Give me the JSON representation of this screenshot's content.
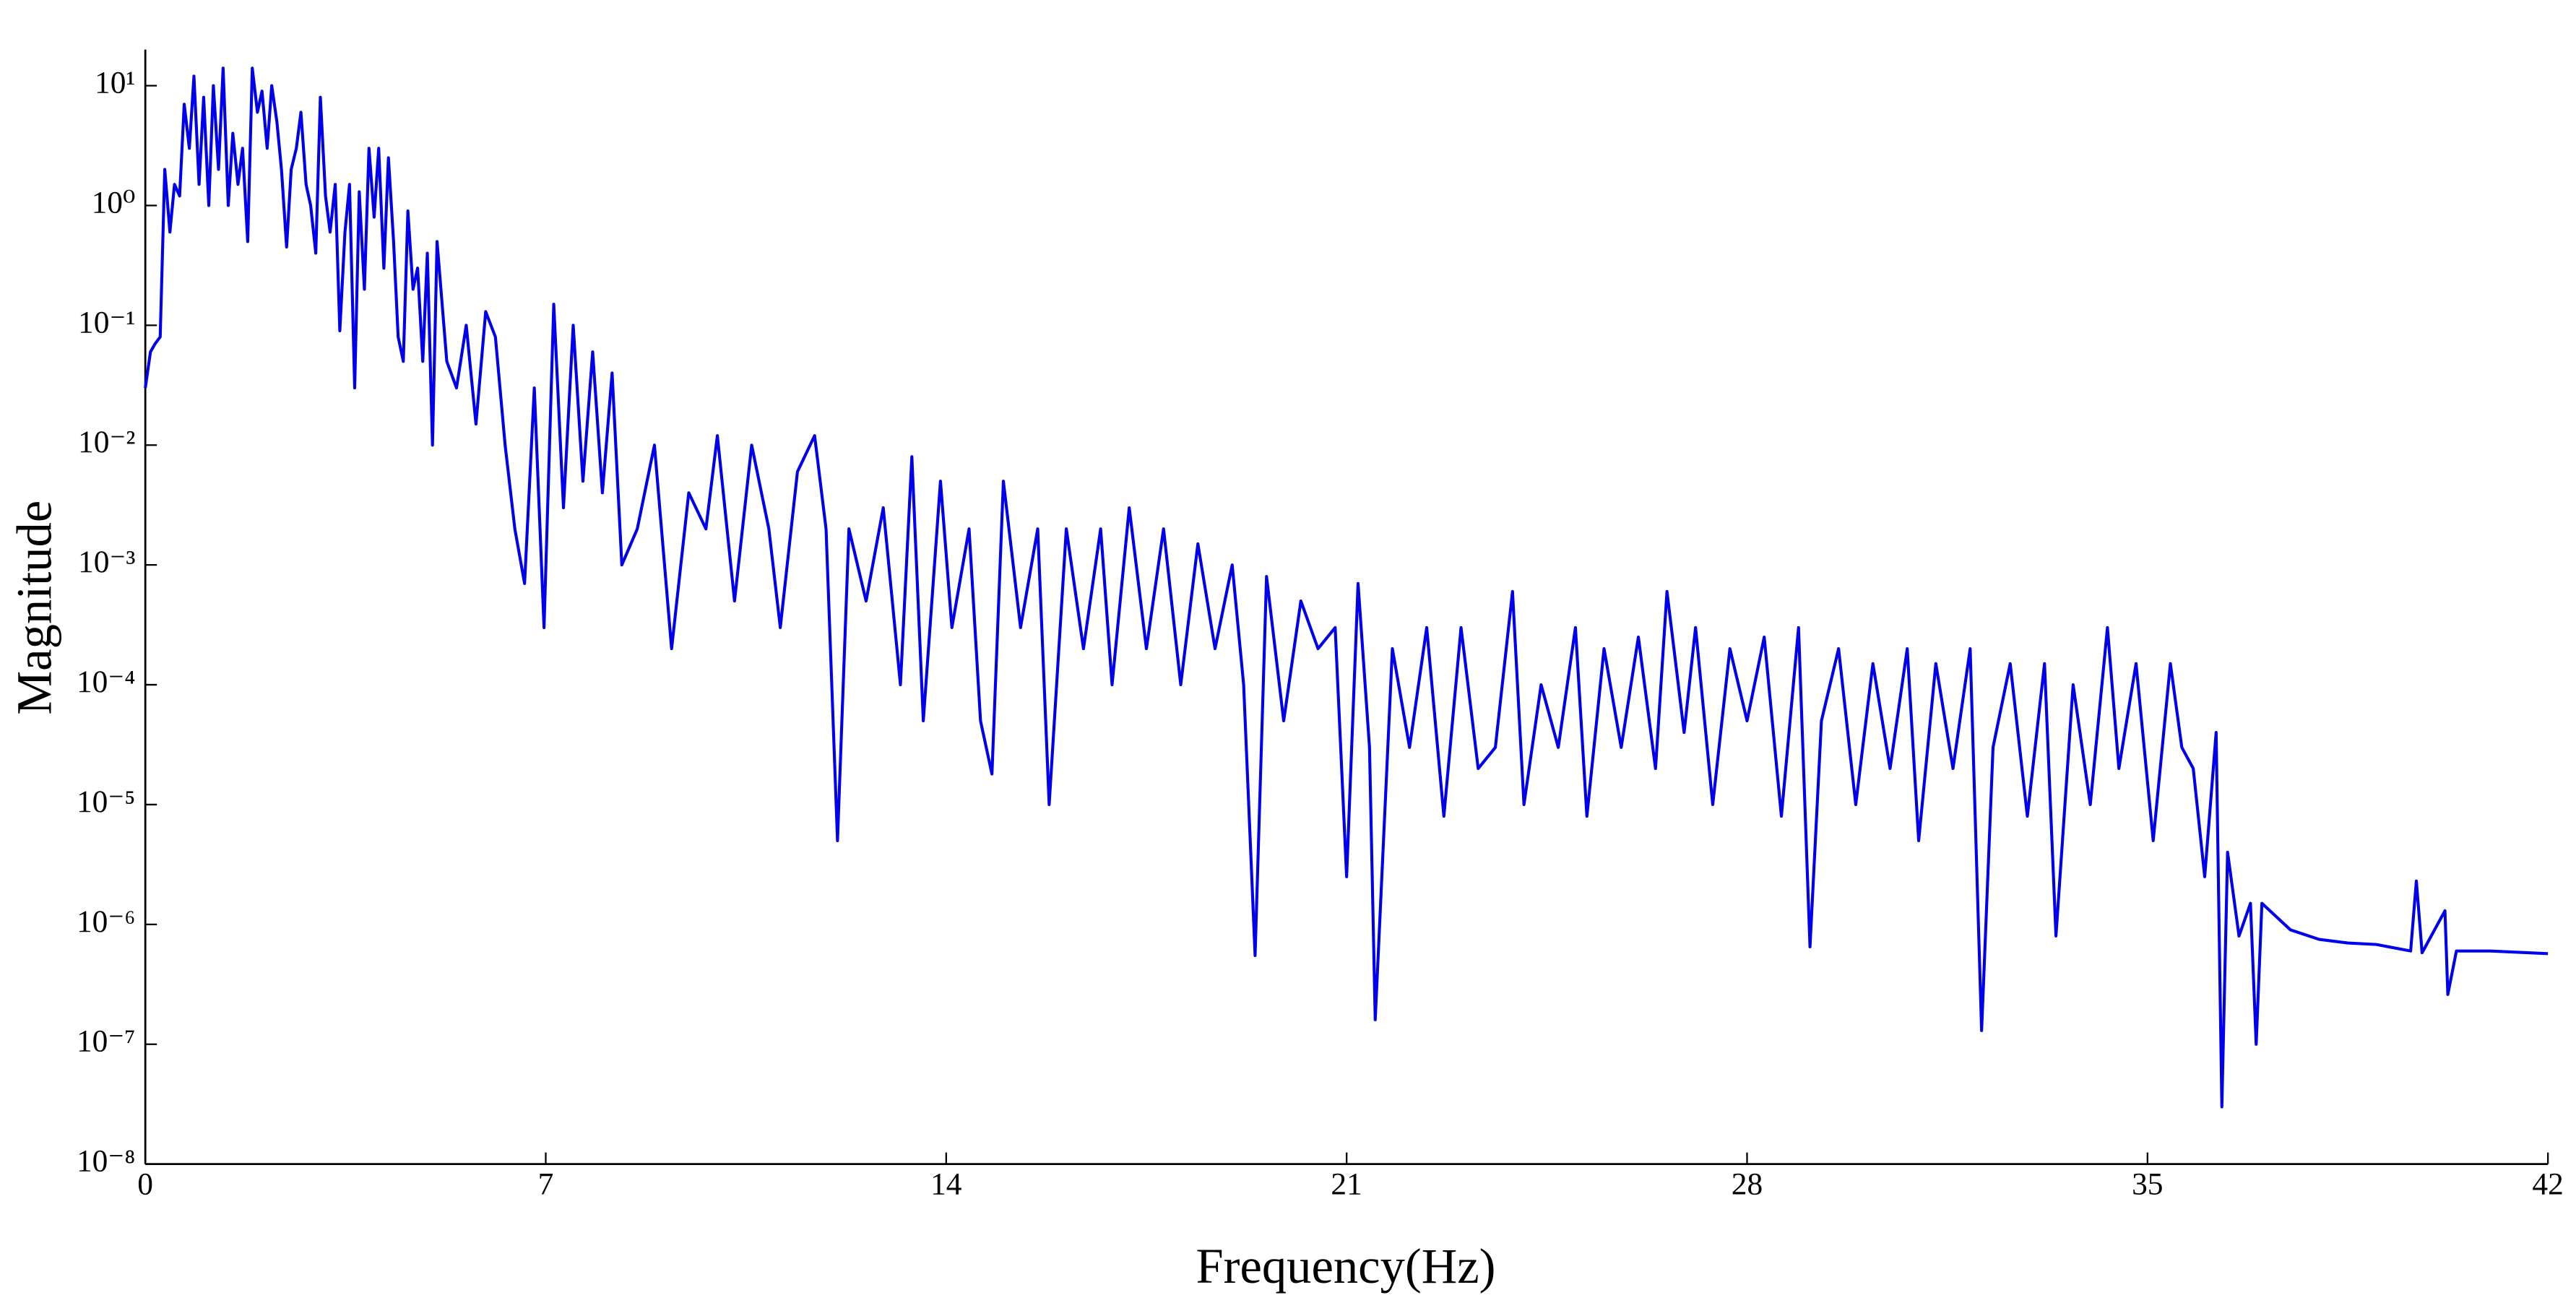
{
  "chart_data": {
    "type": "line",
    "xlabel": "Frequency(Hz)",
    "ylabel": "Magnitude",
    "log_y": true,
    "grid": false,
    "xlim": [
      0,
      42
    ],
    "xticks": [
      0,
      7,
      14,
      21,
      28,
      35,
      42
    ],
    "ylim": [
      1e-08,
      20
    ],
    "yticks": [
      {
        "value": 1e-08,
        "label": "10⁻⁸"
      },
      {
        "value": 1e-07,
        "label": "10⁻⁷"
      },
      {
        "value": 1e-06,
        "label": "10⁻⁶"
      },
      {
        "value": 1e-05,
        "label": "10⁻⁵"
      },
      {
        "value": 0.0001,
        "label": "10⁻⁴"
      },
      {
        "value": 0.001,
        "label": "10⁻³"
      },
      {
        "value": 0.01,
        "label": "10⁻²"
      },
      {
        "value": 0.1,
        "label": "10⁻¹"
      },
      {
        "value": 1,
        "label": "10⁰"
      },
      {
        "value": 10,
        "label": "10¹"
      }
    ],
    "x": [
      0,
      0.09,
      0.17,
      0.26,
      0.34,
      0.43,
      0.51,
      0.6,
      0.68,
      0.77,
      0.85,
      0.94,
      1.02,
      1.11,
      1.19,
      1.28,
      1.36,
      1.45,
      1.53,
      1.62,
      1.7,
      1.79,
      1.87,
      1.96,
      2.04,
      2.13,
      2.21,
      2.3,
      2.38,
      2.47,
      2.55,
      2.64,
      2.72,
      2.81,
      2.89,
      2.98,
      3.06,
      3.15,
      3.23,
      3.32,
      3.4,
      3.49,
      3.57,
      3.66,
      3.74,
      3.83,
      3.91,
      4.0,
      4.08,
      4.17,
      4.25,
      4.34,
      4.42,
      4.51,
      4.59,
      4.68,
      4.76,
      4.85,
      4.93,
      5.02,
      5.1,
      5.27,
      5.44,
      5.61,
      5.78,
      5.95,
      6.12,
      6.29,
      6.46,
      6.63,
      6.8,
      6.97,
      7.14,
      7.31,
      7.48,
      7.65,
      7.82,
      7.99,
      8.16,
      8.33,
      8.6,
      8.9,
      9.2,
      9.5,
      9.8,
      10.0,
      10.3,
      10.6,
      10.9,
      11.1,
      11.4,
      11.7,
      11.9,
      12.1,
      12.3,
      12.6,
      12.9,
      13.2,
      13.4,
      13.6,
      13.9,
      14.1,
      14.4,
      14.6,
      14.8,
      15.0,
      15.3,
      15.6,
      15.8,
      16.1,
      16.4,
      16.7,
      16.9,
      17.2,
      17.5,
      17.8,
      18.1,
      18.4,
      18.7,
      19.0,
      19.2,
      19.4,
      19.6,
      19.9,
      20.2,
      20.5,
      20.8,
      21.0,
      21.2,
      21.4,
      21.5,
      21.8,
      22.1,
      22.4,
      22.7,
      23.0,
      23.3,
      23.6,
      23.9,
      24.1,
      24.4,
      24.7,
      25.0,
      25.2,
      25.5,
      25.8,
      26.1,
      26.4,
      26.6,
      26.9,
      27.1,
      27.4,
      27.7,
      28.0,
      28.3,
      28.6,
      28.9,
      29.1,
      29.3,
      29.6,
      29.9,
      30.2,
      30.5,
      30.8,
      31.0,
      31.3,
      31.6,
      31.9,
      32.1,
      32.3,
      32.6,
      32.9,
      33.2,
      33.4,
      33.7,
      34.0,
      34.3,
      34.5,
      34.8,
      35.1,
      35.4,
      35.6,
      35.8,
      36.0,
      36.2,
      36.3,
      36.4,
      36.6,
      36.8,
      36.9,
      37.0,
      37.5,
      38.0,
      38.5,
      39.0,
      39.6,
      39.7,
      39.8,
      40.2,
      40.25,
      40.4,
      41.0,
      42.0
    ],
    "series": [
      {
        "name": "Magnitude",
        "color": "#0000ee",
        "values": [
          0.03,
          0.06,
          0.07,
          0.08,
          2,
          0.6,
          1.5,
          1.2,
          7,
          3,
          12,
          1.5,
          8,
          1,
          10,
          2,
          14,
          1,
          4,
          1.5,
          3,
          0.5,
          14,
          6,
          9,
          3,
          10,
          5,
          2,
          0.45,
          2,
          3,
          6,
          1.5,
          1,
          0.4,
          8,
          1.2,
          0.6,
          1.5,
          0.09,
          0.6,
          1.5,
          0.03,
          1.3,
          0.2,
          3,
          0.8,
          3,
          0.3,
          2.5,
          0.5,
          0.08,
          0.05,
          0.9,
          0.2,
          0.3,
          0.05,
          0.4,
          0.01,
          0.5,
          0.05,
          0.03,
          0.1,
          0.015,
          0.13,
          0.08,
          0.01,
          0.002,
          0.0007,
          0.03,
          0.0003,
          0.15,
          0.003,
          0.1,
          0.005,
          0.06,
          0.004,
          0.04,
          0.001,
          0.002,
          0.01,
          0.0002,
          0.004,
          0.002,
          0.012,
          0.0005,
          0.01,
          0.002,
          0.0003,
          0.006,
          0.012,
          0.002,
          5e-06,
          0.002,
          0.0005,
          0.003,
          0.0001,
          0.008,
          5e-05,
          0.005,
          0.0003,
          0.002,
          5e-05,
          1.8e-05,
          0.005,
          0.0003,
          0.002,
          1e-05,
          0.002,
          0.0002,
          0.002,
          0.0001,
          0.003,
          0.0002,
          0.002,
          0.0001,
          0.0015,
          0.0002,
          0.001,
          0.0001,
          5.5e-07,
          0.0008,
          5e-05,
          0.0005,
          0.0002,
          0.0003,
          2.5e-06,
          0.0007,
          3e-05,
          1.6e-07,
          0.0002,
          3e-05,
          0.0003,
          8e-06,
          0.0003,
          2e-05,
          3e-05,
          0.0006,
          1e-05,
          0.0001,
          3e-05,
          0.0003,
          8e-06,
          0.0002,
          3e-05,
          0.00025,
          2e-05,
          0.0006,
          4e-05,
          0.0003,
          1e-05,
          0.0002,
          5e-05,
          0.00025,
          8e-06,
          0.0003,
          6.5e-07,
          5e-05,
          0.0002,
          1e-05,
          0.00015,
          2e-05,
          0.0002,
          5e-06,
          0.00015,
          2e-05,
          0.0002,
          1.3e-07,
          3e-05,
          0.00015,
          8e-06,
          0.00015,
          8e-07,
          0.0001,
          1e-05,
          0.0003,
          2e-05,
          0.00015,
          5e-06,
          0.00015,
          3e-05,
          2e-05,
          2.5e-06,
          4e-05,
          3e-08,
          4e-06,
          8e-07,
          1.5e-06,
          1e-07,
          1.5e-06,
          9e-07,
          7.5e-07,
          7e-07,
          6.8e-07,
          6e-07,
          2.3e-06,
          5.8e-07,
          1.3e-06,
          2.6e-07,
          6e-07,
          6e-07,
          5.7e-07
        ]
      }
    ]
  }
}
